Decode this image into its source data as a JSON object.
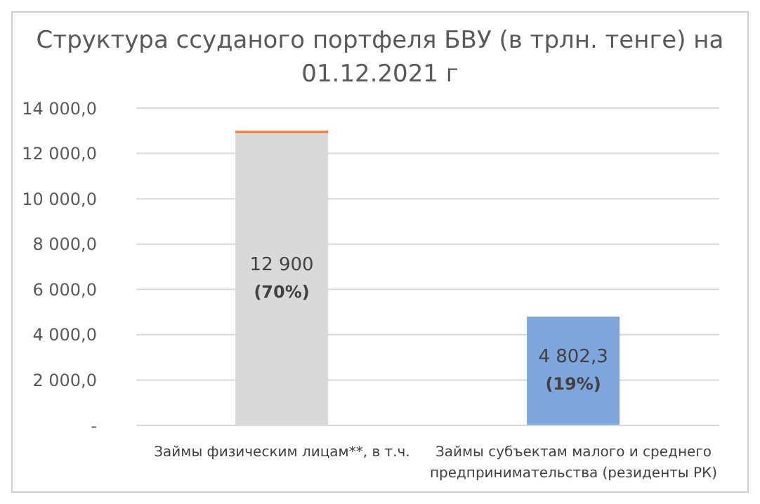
{
  "chart_data": {
    "type": "bar",
    "title": "Структура ссуданого портфеля БВУ (в трлн. тенге) на 01.12.2021 г",
    "categories": [
      "Займы физическим лицам**, в т.ч.",
      "Займы субъектам малого и среднего предпринимательства (резиденты РК)"
    ],
    "stacked": true,
    "series": [
      {
        "color": "#d9d9d9",
        "values": [
          12900,
          4802.3
        ],
        "colors": [
          "#d9d9d9",
          "#7ea6dc"
        ],
        "value_labels": [
          "12 900",
          "4 802,3"
        ]
      },
      {
        "color": "#ed7d31",
        "values": [
          100,
          null
        ]
      }
    ],
    "ylim": [
      0,
      14000
    ],
    "yticks": [
      {
        "value": 0,
        "label": "-"
      },
      {
        "value": 2000,
        "label": "2 000,0"
      },
      {
        "value": 4000,
        "label": "4 000,0"
      },
      {
        "value": 6000,
        "label": "6 000,0"
      },
      {
        "value": 8000,
        "label": "8 000,0"
      },
      {
        "value": 10000,
        "label": "10 000,0"
      },
      {
        "value": 12000,
        "label": "12 000,0"
      },
      {
        "value": 14000,
        "label": "14 000,0"
      }
    ],
    "grid": "y",
    "annotations": [
      "(70%)",
      "(19%)"
    ]
  }
}
